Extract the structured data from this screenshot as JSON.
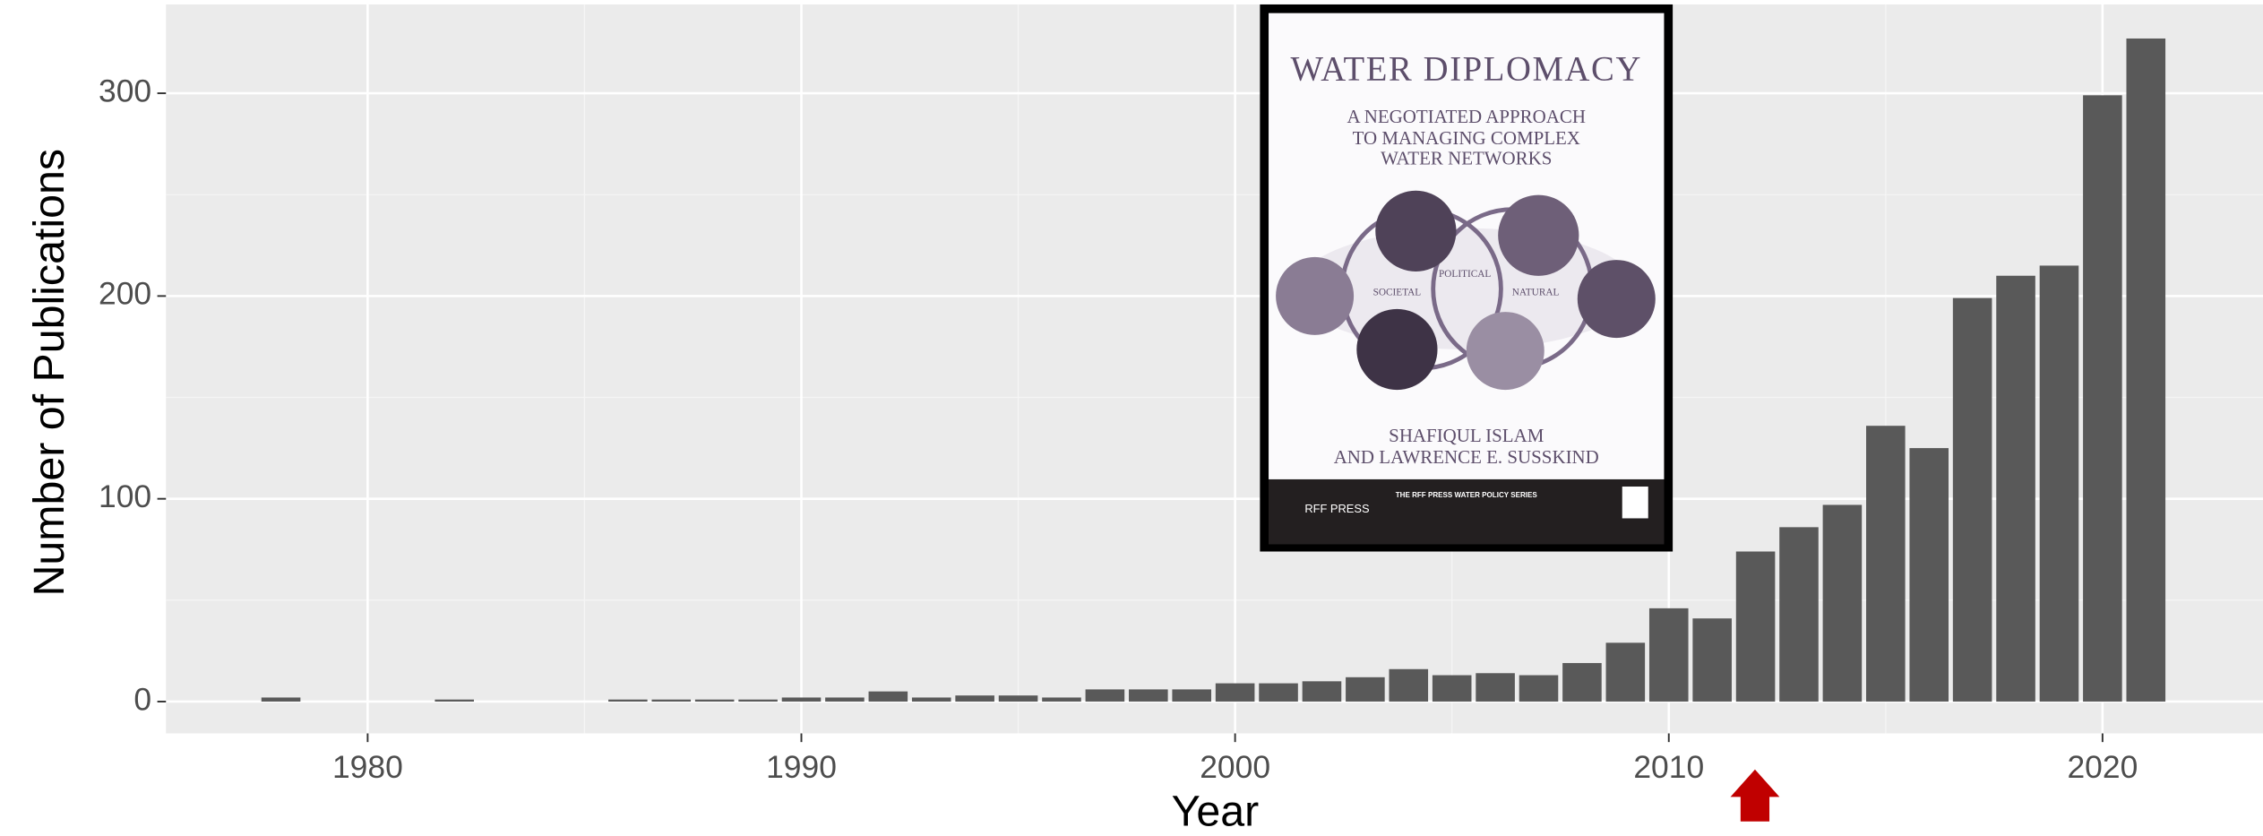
{
  "chart_data": {
    "type": "bar",
    "x_label": "Year",
    "y_label": "Number of Publications",
    "x": [
      1978,
      1982,
      1986,
      1987,
      1988,
      1989,
      1990,
      1991,
      1992,
      1993,
      1994,
      1995,
      1996,
      1997,
      1998,
      1999,
      2000,
      2001,
      2002,
      2003,
      2004,
      2005,
      2006,
      2007,
      2008,
      2009,
      2010,
      2011,
      2012,
      2013,
      2014,
      2015,
      2016,
      2017,
      2018,
      2019,
      2020,
      2021
    ],
    "values": [
      2,
      1,
      1,
      1,
      1,
      1,
      2,
      2,
      5,
      2,
      3,
      3,
      2,
      6,
      6,
      6,
      9,
      9,
      10,
      12,
      16,
      13,
      14,
      13,
      19,
      29,
      46,
      41,
      74,
      86,
      97,
      136,
      125,
      199,
      210,
      215,
      299,
      327
    ],
    "color": "#595959",
    "xlim": [
      1975.35,
      2023.7
    ],
    "ylim": [
      -15.7,
      343.8
    ],
    "xticks": [
      1980,
      1990,
      2000,
      2010,
      2020
    ],
    "yticks": [
      0,
      100,
      200,
      300
    ],
    "grid": true,
    "inset": {
      "title": "WATER DIPLOMACY",
      "subtitle_lines": [
        "A NEGOTIATED APPROACH",
        "TO MANAGING COMPLEX",
        "WATER NETWORKS"
      ],
      "labels": [
        "SOCIETAL",
        "POLITICAL",
        "NATURAL"
      ],
      "authors": [
        "SHAFIQUL ISLAM",
        "AND LAWRENCE E. SUSSKIND"
      ],
      "series_name": "THE RFF PRESS WATER POLICY SERIES",
      "publisher": "RFF PRESS"
    }
  }
}
